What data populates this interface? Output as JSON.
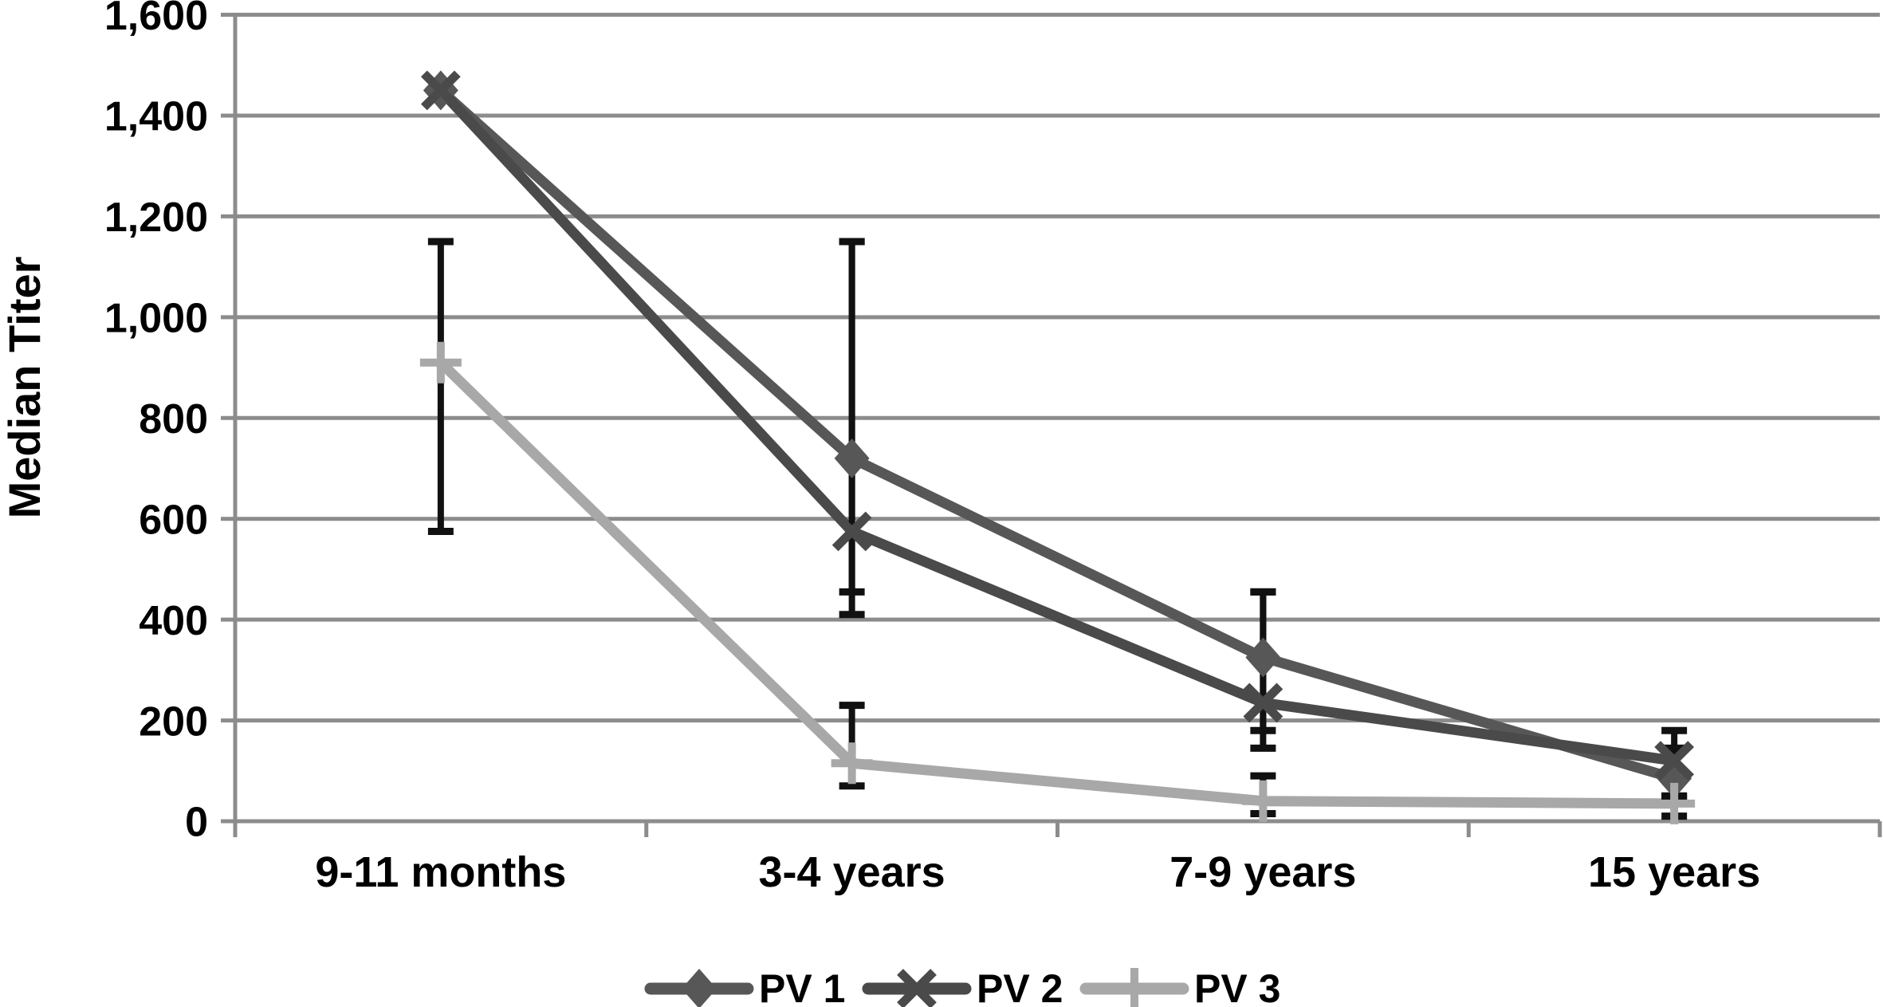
{
  "figure": {
    "background": "#ffffff",
    "text_color": "#000000"
  },
  "chart_data": {
    "type": "line",
    "title": "",
    "xlabel": "",
    "ylabel": "Median Titer",
    "categories": [
      "9-11 months",
      "3-4 years",
      "7-9 years",
      "15 years"
    ],
    "ylim": [
      0,
      1600
    ],
    "y_tick_step": 200,
    "y_ticks": [
      {
        "value": 0,
        "label": "0"
      },
      {
        "value": 200,
        "label": "200"
      },
      {
        "value": 400,
        "label": "400"
      },
      {
        "value": 600,
        "label": "600"
      },
      {
        "value": 800,
        "label": "800"
      },
      {
        "value": 1000,
        "label": "1,000"
      },
      {
        "value": 1200,
        "label": "1,200"
      },
      {
        "value": 1400,
        "label": "1,400"
      },
      {
        "value": 1600,
        "label": "1,600"
      }
    ],
    "grid": "horizontal",
    "legend_position": "bottom-center",
    "gridline_color": "#8c8c8c",
    "axis_color": "#8c8c8c",
    "error_bar_color": "#111111",
    "series": [
      {
        "name": "PV 1",
        "marker": "diamond",
        "color": "#575757",
        "values": [
          1450,
          720,
          325,
          85
        ],
        "error_bars": [
          null,
          [
            455,
            1150
          ],
          [
            180,
            455
          ],
          [
            50,
            180
          ]
        ]
      },
      {
        "name": "PV 2",
        "marker": "x",
        "color": "#4a4a4a",
        "values": [
          1450,
          575,
          235,
          120
        ],
        "error_bars": [
          null,
          [
            410,
            1150
          ],
          [
            145,
            455
          ],
          [
            45,
            145
          ]
        ]
      },
      {
        "name": "PV 3",
        "marker": "plus",
        "color": "#a8a8a8",
        "values": [
          910,
          115,
          40,
          35
        ],
        "error_bars": [
          [
            575,
            1150
          ],
          [
            70,
            230
          ],
          [
            15,
            90
          ],
          [
            10,
            50
          ]
        ]
      }
    ]
  }
}
